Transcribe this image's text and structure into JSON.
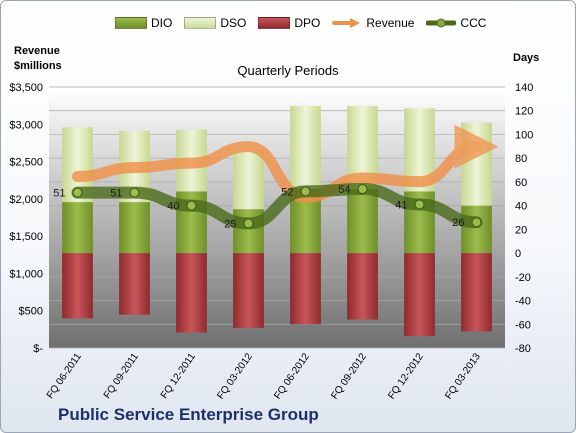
{
  "company": "Public Service Enterprise Group",
  "left_axis_title": [
    "Revenue",
    "$millions"
  ],
  "right_axis_title": "Days",
  "chart_data": {
    "type": "bar",
    "title": "Quarterly Periods",
    "categories": [
      "FQ 06-2011",
      "FQ 09-2011",
      "FQ 12-2011",
      "FQ 03-2012",
      "FQ 06-2012",
      "FQ 09-2012",
      "FQ 12-2012",
      "FQ 03-2013"
    ],
    "series": [
      {
        "name": "DIO",
        "axis": "right",
        "chart": "stacked-bar",
        "values": [
          43,
          43,
          52,
          37,
          54,
          54,
          52,
          40
        ]
      },
      {
        "name": "DSO",
        "axis": "right",
        "chart": "stacked-bar",
        "values": [
          63,
          60,
          52,
          50,
          70,
          70,
          70,
          70
        ]
      },
      {
        "name": "DPO",
        "axis": "right",
        "chart": "negative-bar",
        "values": [
          -55,
          -52,
          -67,
          -63,
          -60,
          -56,
          -70,
          -66
        ]
      },
      {
        "name": "Revenue",
        "axis": "left",
        "chart": "line",
        "values": [
          2300,
          2420,
          2480,
          2700,
          2020,
          2280,
          2230,
          2700
        ]
      },
      {
        "name": "CCC",
        "axis": "right",
        "chart": "line",
        "values": [
          51,
          51,
          40,
          25,
          52,
          54,
          41,
          26
        ],
        "labels": [
          "51",
          "51",
          "40",
          "25",
          "52",
          "54",
          "41",
          "26"
        ]
      }
    ],
    "left_axis": {
      "min": 0,
      "max": 3500,
      "step": 500,
      "tick_labels": [
        "$-",
        "$500",
        "$1,000",
        "$1,500",
        "$2,000",
        "$2,500",
        "$3,000",
        "$3,500"
      ]
    },
    "right_axis": {
      "min": -80,
      "max": 140,
      "step": 20,
      "tick_labels": [
        "-80",
        "-60",
        "-40",
        "-20",
        "0",
        "20",
        "40",
        "60",
        "80",
        "100",
        "120",
        "140"
      ]
    },
    "grid": true,
    "legend": "top",
    "colors": {
      "DIO": "#7a9a32",
      "DSO": "#d7e4b0",
      "DPO": "#b03b3f",
      "Revenue": "#f0914a",
      "CCC": "#4a6a1a",
      "plot_background_top": "#ffffff",
      "plot_background_bottom": "#6f6f6f"
    }
  }
}
